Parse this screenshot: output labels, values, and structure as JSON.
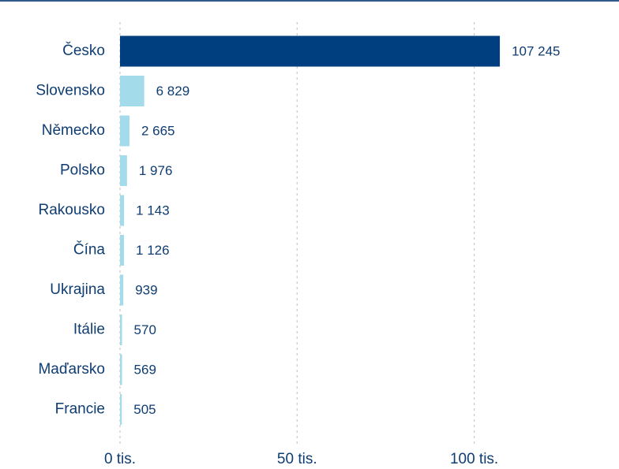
{
  "chart_data": {
    "type": "bar",
    "orientation": "horizontal",
    "categories": [
      "Česko",
      "Slovensko",
      "Německo",
      "Polsko",
      "Rakousko",
      "Čína",
      "Ukrajina",
      "Itálie",
      "Maďarsko",
      "Francie"
    ],
    "values": [
      107245,
      6829,
      2665,
      1976,
      1143,
      1126,
      939,
      570,
      569,
      505
    ],
    "value_labels": [
      "107 245",
      "6 829",
      "2 665",
      "1 976",
      "1 143",
      "1 126",
      "939",
      "570",
      "569",
      "505"
    ],
    "colors": [
      "#003f7f",
      "#a3dbea",
      "#a3dbea",
      "#a3dbea",
      "#a3dbea",
      "#a3dbea",
      "#a3dbea",
      "#a3dbea",
      "#a3dbea",
      "#a3dbea"
    ],
    "xlim": [
      0,
      140000
    ],
    "xticks": [
      {
        "value": 0,
        "label": "0 tis."
      },
      {
        "value": 50000,
        "label": "50 tis."
      },
      {
        "value": 100000,
        "label": "100 tis."
      }
    ],
    "grid": true
  }
}
